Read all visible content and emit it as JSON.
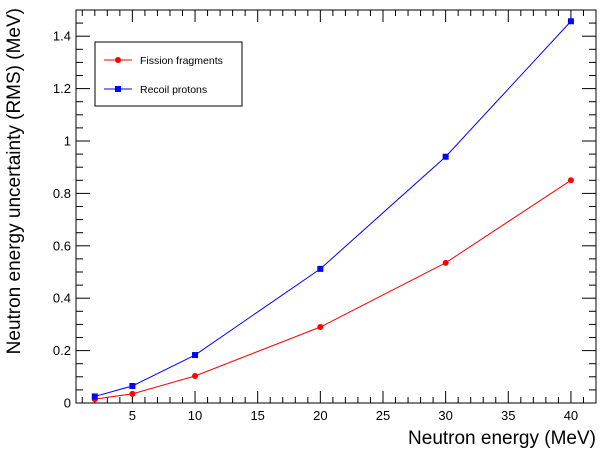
{
  "chart_data": {
    "type": "line",
    "title": "",
    "xlabel": "Neutron energy (MeV)",
    "ylabel": "Neutron energy uncertainty (RMS) (MeV)",
    "xlim": [
      0.5,
      42
    ],
    "ylim": [
      0,
      1.5
    ],
    "x_ticks": [
      5,
      10,
      15,
      20,
      25,
      30,
      35,
      40
    ],
    "y_ticks": [
      0,
      0.2,
      0.4,
      0.6,
      0.8,
      1,
      1.2,
      1.4
    ],
    "x_tick_labels": [
      "5",
      "10",
      "15",
      "20",
      "25",
      "30",
      "35",
      "40"
    ],
    "y_tick_labels": [
      "0",
      "0.2",
      "0.4",
      "0.6",
      "0.8",
      "1",
      "1.2",
      "1.4"
    ],
    "grid": false,
    "legend_position": "top-left",
    "series": [
      {
        "name": "Fission fragments",
        "color": "#ff0000",
        "marker": "circle",
        "x": [
          2,
          5,
          10,
          20,
          30,
          40
        ],
        "values": [
          0.015,
          0.035,
          0.103,
          0.29,
          0.535,
          0.85
        ]
      },
      {
        "name": "Recoil protons",
        "color": "#0000ff",
        "marker": "square",
        "x": [
          2,
          5,
          10,
          20,
          30,
          40
        ],
        "values": [
          0.025,
          0.065,
          0.183,
          0.512,
          0.94,
          1.457
        ]
      }
    ]
  }
}
